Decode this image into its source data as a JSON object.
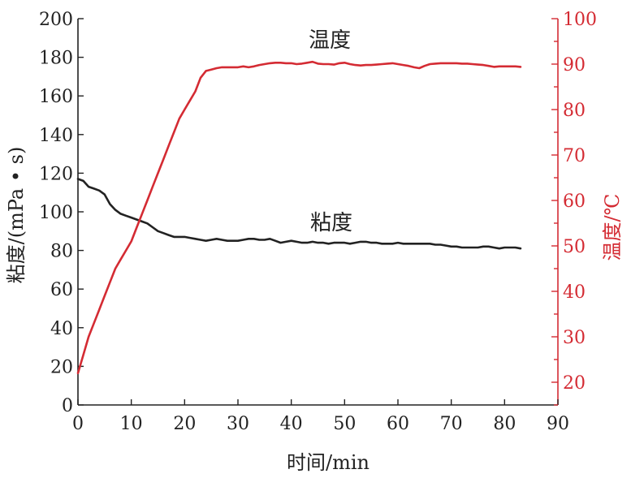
{
  "chart_data": {
    "type": "line",
    "xlabel": "时间/min",
    "ylabel_left": "粘度/(mPa • s)",
    "ylabel_right": "温度/℃",
    "xlim": [
      0,
      90
    ],
    "ylim_left": [
      0,
      200
    ],
    "ylim_right": [
      15,
      100
    ],
    "x_ticks": [
      0,
      10,
      20,
      30,
      40,
      50,
      60,
      70,
      80,
      90
    ],
    "y_ticks_left": [
      0,
      20,
      40,
      60,
      80,
      100,
      120,
      140,
      160,
      180,
      200
    ],
    "y_ticks_right": [
      20,
      30,
      40,
      50,
      60,
      70,
      80,
      90,
      100
    ],
    "grid": false,
    "colors": {
      "viscosity": "#222222",
      "temperature": "#d42b33",
      "left_axis": "#222222",
      "right_axis": "#d42b33"
    },
    "series": [
      {
        "name": "粘度",
        "axis": "left",
        "x": [
          0,
          1,
          2,
          3,
          4,
          5,
          6,
          7,
          8,
          9,
          10,
          11,
          12,
          13,
          14,
          15,
          16,
          17,
          18,
          19,
          20,
          21,
          22,
          23,
          24,
          25,
          26,
          27,
          28,
          29,
          30,
          31,
          32,
          33,
          34,
          35,
          36,
          37,
          38,
          39,
          40,
          41,
          42,
          43,
          44,
          45,
          46,
          47,
          48,
          49,
          50,
          51,
          52,
          53,
          54,
          55,
          56,
          57,
          58,
          59,
          60,
          61,
          62,
          63,
          64,
          65,
          66,
          67,
          68,
          69,
          70,
          71,
          72,
          73,
          74,
          75,
          76,
          77,
          78,
          79,
          80,
          81,
          82,
          83
        ],
        "values": [
          117,
          116,
          113,
          112,
          111,
          109,
          104,
          101,
          99,
          98,
          97,
          96,
          95,
          94,
          92,
          90,
          89,
          88,
          87,
          87,
          87,
          86.5,
          86,
          85.5,
          85,
          85.5,
          86,
          85.5,
          85,
          85,
          85,
          85.5,
          86,
          86,
          85.5,
          85.5,
          86,
          85,
          84,
          84.5,
          85,
          84.5,
          84,
          84,
          84.5,
          84,
          84,
          83.5,
          84,
          84,
          84,
          83.5,
          84,
          84.5,
          84.5,
          84,
          84,
          83.5,
          83.5,
          83.5,
          84,
          83.5,
          83.5,
          83.5,
          83.5,
          83.5,
          83.5,
          83,
          83,
          82.5,
          82,
          82,
          81.5,
          81.5,
          81.5,
          81.5,
          82,
          82,
          81.5,
          81,
          81.5,
          81.5,
          81.5,
          81
        ]
      },
      {
        "name": "温度",
        "axis": "right",
        "x": [
          0,
          1,
          2,
          3,
          4,
          5,
          6,
          7,
          8,
          9,
          10,
          11,
          12,
          13,
          14,
          15,
          16,
          17,
          18,
          19,
          20,
          21,
          22,
          23,
          24,
          25,
          26,
          27,
          28,
          29,
          30,
          31,
          32,
          33,
          34,
          35,
          36,
          37,
          38,
          39,
          40,
          41,
          42,
          43,
          44,
          45,
          46,
          47,
          48,
          49,
          50,
          51,
          52,
          53,
          54,
          55,
          56,
          57,
          58,
          59,
          60,
          61,
          62,
          63,
          64,
          65,
          66,
          67,
          68,
          69,
          70,
          71,
          72,
          73,
          74,
          75,
          76,
          77,
          78,
          79,
          80,
          81,
          82,
          83
        ],
        "values": [
          22,
          26,
          30,
          33,
          36,
          39,
          42,
          45,
          47,
          49,
          51,
          54,
          57,
          60,
          63,
          66,
          69,
          72,
          75,
          78,
          80,
          82,
          84,
          87,
          88.5,
          88.8,
          89.1,
          89.3,
          89.3,
          89.3,
          89.3,
          89.5,
          89.3,
          89.5,
          89.8,
          90.0,
          90.2,
          90.3,
          90.3,
          90.2,
          90.2,
          90.0,
          90.1,
          90.3,
          90.5,
          90.1,
          90.0,
          90.0,
          89.9,
          90.2,
          90.3,
          90.0,
          89.8,
          89.7,
          89.8,
          89.8,
          89.9,
          90.0,
          90.1,
          90.2,
          90.0,
          89.8,
          89.6,
          89.3,
          89.1,
          89.6,
          90.0,
          90.1,
          90.2,
          90.2,
          90.2,
          90.2,
          90.1,
          90.1,
          90.0,
          89.9,
          89.8,
          89.6,
          89.4,
          89.5,
          89.5,
          89.5,
          89.5,
          89.4
        ]
      }
    ]
  }
}
